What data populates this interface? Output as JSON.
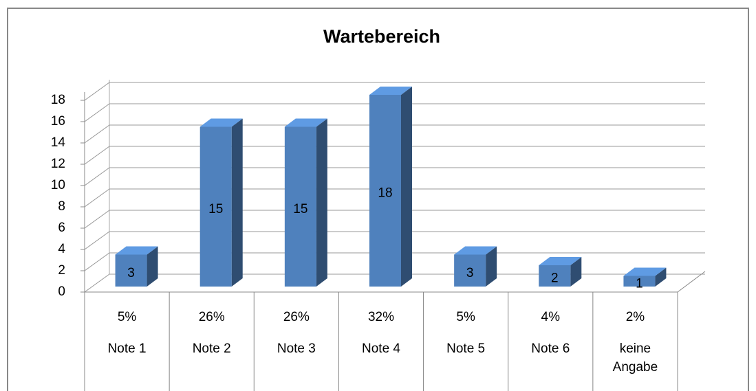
{
  "chart_data": {
    "type": "bar3d",
    "title": "Wartebereich",
    "categories": [
      "Note 1",
      "Note 2",
      "Note 3",
      "Note 4",
      "Note 5",
      "Note 6",
      "keine Angabe"
    ],
    "shares": [
      "5%",
      "26%",
      "26%",
      "32%",
      "5%",
      "4%",
      "2%"
    ],
    "values": [
      3,
      15,
      15,
      18,
      3,
      2,
      1
    ],
    "color": "#4f81bd",
    "ylim": [
      0,
      18
    ],
    "yticks": [
      0,
      2,
      4,
      6,
      8,
      10,
      12,
      14,
      16,
      18
    ],
    "grid": true
  }
}
